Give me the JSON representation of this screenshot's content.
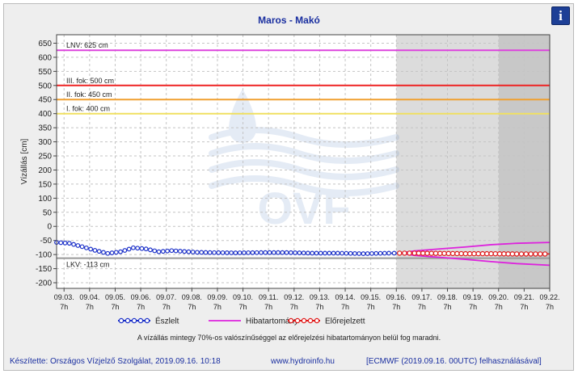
{
  "chart_data": {
    "type": "line",
    "title": "Maros - Makó",
    "ylabel": "Vízállás [cm]",
    "xlabel": "",
    "ylim": [
      -220,
      680
    ],
    "yticks": [
      -200,
      -150,
      -100,
      -50,
      0,
      50,
      100,
      150,
      200,
      250,
      300,
      350,
      400,
      450,
      500,
      550,
      600,
      650
    ],
    "x_start": "2019.09.03 00h",
    "x_end": "2019.09.22 07h",
    "x_ticks": [
      {
        "x": "2019.09.03 07h",
        "top": "09.03.",
        "bottom": "7h"
      },
      {
        "x": "2019.09.04 07h",
        "top": "09.04.",
        "bottom": "7h"
      },
      {
        "x": "2019.09.05 07h",
        "top": "09.05.",
        "bottom": "7h"
      },
      {
        "x": "2019.09.06 07h",
        "top": "09.06.",
        "bottom": "7h"
      },
      {
        "x": "2019.09.07 07h",
        "top": "09.07.",
        "bottom": "7h"
      },
      {
        "x": "2019.09.08 07h",
        "top": "09.08.",
        "bottom": "7h"
      },
      {
        "x": "2019.09.09 07h",
        "top": "09.09.",
        "bottom": "7h"
      },
      {
        "x": "2019.09.10 07h",
        "top": "09.10.",
        "bottom": "7h"
      },
      {
        "x": "2019.09.11 07h",
        "top": "09.11.",
        "bottom": "7h"
      },
      {
        "x": "2019.09.12 07h",
        "top": "09.12.",
        "bottom": "7h"
      },
      {
        "x": "2019.09.13 07h",
        "top": "09.13.",
        "bottom": "7h"
      },
      {
        "x": "2019.09.14 07h",
        "top": "09.14.",
        "bottom": "7h"
      },
      {
        "x": "2019.09.15 07h",
        "top": "09.15.",
        "bottom": "7h"
      },
      {
        "x": "2019.09.16 07h",
        "top": "09.16.",
        "bottom": "7h"
      },
      {
        "x": "2019.09.17 07h",
        "top": "09.17.",
        "bottom": "7h"
      },
      {
        "x": "2019.09.18 07h",
        "top": "09.18.",
        "bottom": "7h"
      },
      {
        "x": "2019.09.19 07h",
        "top": "09.19.",
        "bottom": "7h"
      },
      {
        "x": "2019.09.20 07h",
        "top": "09.20.",
        "bottom": "7h"
      },
      {
        "x": "2019.09.21 07h",
        "top": "09.21.",
        "bottom": "7h"
      },
      {
        "x": "2019.09.22 07h",
        "top": "09.22.",
        "bottom": "7h"
      }
    ],
    "shaded_regions": [
      {
        "from": "2019.09.16 07h",
        "to": "2019.09.20 07h",
        "color": "#dcdcdc"
      },
      {
        "from": "2019.09.20 07h",
        "to": "2019.09.22 07h",
        "color": "#c8c8c8"
      }
    ],
    "reference_lines": [
      {
        "label": "LNV: 625 cm",
        "value": 625,
        "color": "#dd44dd"
      },
      {
        "label": "III. fok: 500 cm",
        "value": 500,
        "color": "#ee2222"
      },
      {
        "label": "II. fok: 450 cm",
        "value": 450,
        "color": "#f0a030"
      },
      {
        "label": "I. fok: 400 cm",
        "value": 400,
        "color": "#f0e060"
      },
      {
        "label": "LKV: -113 cm",
        "value": -113,
        "color": "#999999"
      }
    ],
    "series": [
      {
        "name": "Észlelt",
        "color": "#1a2fc8",
        "x": [
          "2019.09.03 00h",
          "2019.09.03 12h",
          "2019.09.04 00h",
          "2019.09.04 12h",
          "2019.09.05 00h",
          "2019.09.05 12h",
          "2019.09.06 00h",
          "2019.09.06 12h",
          "2019.09.07 00h",
          "2019.09.07 12h",
          "2019.09.08 00h",
          "2019.09.08 12h",
          "2019.09.09 00h",
          "2019.09.10 00h",
          "2019.09.11 00h",
          "2019.09.12 00h",
          "2019.09.13 00h",
          "2019.09.14 00h",
          "2019.09.15 00h",
          "2019.09.16 00h",
          "2019.09.16 10h"
        ],
        "y": [
          -57,
          -60,
          -72,
          -85,
          -96,
          -90,
          -76,
          -80,
          -90,
          -86,
          -89,
          -92,
          -93,
          -94,
          -93,
          -93,
          -95,
          -95,
          -97,
          -95,
          -95
        ]
      },
      {
        "name": "Hibatartomány",
        "color": "#dd22dd",
        "x": [
          "2019.09.16 10h",
          "2019.09.17 00h",
          "2019.09.18 00h",
          "2019.09.19 00h",
          "2019.09.20 00h",
          "2019.09.21 00h",
          "2019.09.22 07h"
        ],
        "upper": [
          -95,
          -87,
          -80,
          -73,
          -65,
          -60,
          -57
        ],
        "lower": [
          -95,
          -103,
          -110,
          -117,
          -125,
          -132,
          -138
        ]
      },
      {
        "name": "Előrejelzett",
        "color": "#e01818",
        "x": [
          "2019.09.16 10h",
          "2019.09.17 00h",
          "2019.09.18 00h",
          "2019.09.19 00h",
          "2019.09.20 00h",
          "2019.09.21 00h",
          "2019.09.22 07h"
        ],
        "y": [
          -95,
          -95,
          -96,
          -97,
          -97,
          -98,
          -98
        ]
      }
    ],
    "legend_placement": "bottom"
  },
  "watermark": {
    "text": "OVF"
  },
  "info_icon": {
    "icon": "info-icon",
    "label": "i"
  },
  "note": "A vízállás mintegy 70%-os valószínűséggel az előrejelzési hibatartományon belül fog maradni.",
  "footer": {
    "credit": "Készítette: Országos Vízjelző Szolgálat, 2019.09.16. 10:18",
    "website": "www.hydroinfo.hu",
    "model": "[ECMWF (2019.09.16. 00UTC) felhasználásával]"
  }
}
